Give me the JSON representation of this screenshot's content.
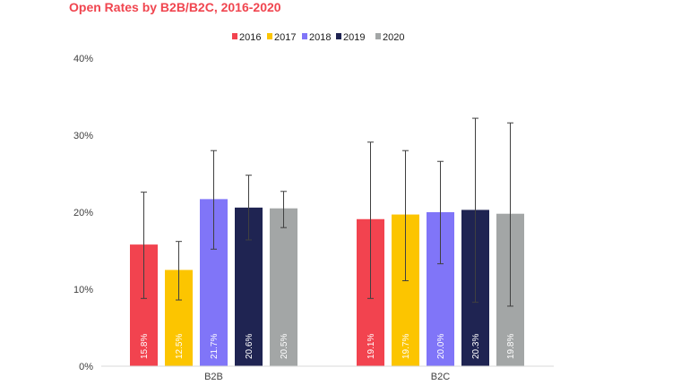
{
  "chart_data": {
    "type": "bar",
    "title": "Open Rates by B2B/B2C, 2016-2020",
    "categories": [
      "B2B",
      "B2C"
    ],
    "series": [
      {
        "name": "2016",
        "color": "#f2434f",
        "values": [
          15.8,
          19.1
        ],
        "error_low": [
          8.8,
          8.8
        ],
        "error_high": [
          22.6,
          29.1
        ],
        "labels": [
          "15.8%",
          "19.1%"
        ]
      },
      {
        "name": "2017",
        "color": "#fcc500",
        "values": [
          12.5,
          19.7
        ],
        "error_low": [
          8.6,
          11.1
        ],
        "error_high": [
          16.2,
          28.0
        ],
        "labels": [
          "12.5%",
          "19.7%"
        ]
      },
      {
        "name": "2018",
        "color": "#8075f8",
        "values": [
          21.7,
          20.0
        ],
        "error_low": [
          15.2,
          13.3
        ],
        "error_high": [
          28.0,
          26.6
        ],
        "labels": [
          "21.7%",
          "20.0%"
        ]
      },
      {
        "name": "2019",
        "color": "#1f2452",
        "values": [
          20.6,
          20.3
        ],
        "error_low": [
          16.4,
          8.3
        ],
        "error_high": [
          24.8,
          32.2
        ],
        "labels": [
          "20.6%",
          "20.3%"
        ]
      },
      {
        "name": "2020",
        "color": "#a3a6a6",
        "values": [
          20.5,
          19.8
        ],
        "error_low": [
          18.0,
          7.8
        ],
        "error_high": [
          22.7,
          31.6
        ],
        "labels": [
          "20.5%",
          "19.8%"
        ]
      }
    ],
    "ylim": [
      0,
      40
    ],
    "yticks": [
      0,
      10,
      20,
      30,
      40
    ],
    "ytick_labels": [
      "0%",
      "10%",
      "20%",
      "30%",
      "40%"
    ],
    "xlabel": "",
    "ylabel": "",
    "grid": false,
    "legend_position": "top-center"
  }
}
